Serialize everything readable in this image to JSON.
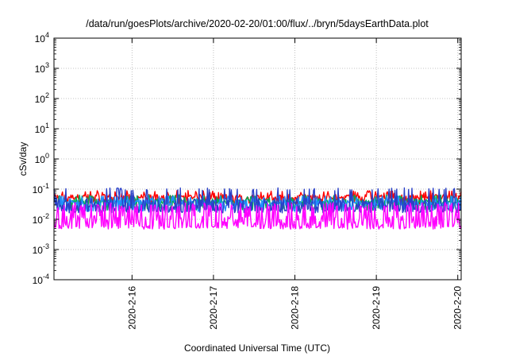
{
  "chart_data": {
    "type": "line",
    "title": "/data/run/goesPlots/archive/2020-02-20/01:00/flux/../bryn/5daysEarthData.plot",
    "xlabel": "Coordinated Universal Time (UTC)",
    "ylabel": "cSv/day",
    "yscale": "log",
    "ylim": [
      0.0001,
      10000
    ],
    "yticks": [
      {
        "value": 0.0001,
        "base": "10",
        "exp": "-4"
      },
      {
        "value": 0.001,
        "base": "10",
        "exp": "-3"
      },
      {
        "value": 0.01,
        "base": "10",
        "exp": "-2"
      },
      {
        "value": 0.1,
        "base": "10",
        "exp": "-1"
      },
      {
        "value": 1,
        "base": "10",
        "exp": "0"
      },
      {
        "value": 10,
        "base": "10",
        "exp": "1"
      },
      {
        "value": 100,
        "base": "10",
        "exp": "2"
      },
      {
        "value": 1000,
        "base": "10",
        "exp": "3"
      },
      {
        "value": 10000,
        "base": "10",
        "exp": "4"
      }
    ],
    "xlim": [
      "2020-02-15T01:00",
      "2020-02-20T01:00"
    ],
    "xticks": [
      {
        "value": "2020-02-16T00:00",
        "label": "2020-2-16"
      },
      {
        "value": "2020-02-17T00:00",
        "label": "2020-2-17"
      },
      {
        "value": "2020-02-18T00:00",
        "label": "2020-2-18"
      },
      {
        "value": "2020-02-19T00:00",
        "label": "2020-2-19"
      },
      {
        "value": "2020-02-20T00:00",
        "label": "2020-2-20"
      }
    ],
    "grid": true,
    "legend": "none",
    "series": [
      {
        "color": "#ff0000",
        "base": 0.055,
        "low": 0.035,
        "high": 0.09
      },
      {
        "color": "#00aa55",
        "base": 0.04,
        "low": 0.022,
        "high": 0.065
      },
      {
        "color": "#1e90ff",
        "base": 0.035,
        "low": 0.02,
        "high": 0.06
      },
      {
        "color": "#2a40c8",
        "base": 0.03,
        "low": 0.018,
        "high": 0.11
      },
      {
        "color": "#ff00ff",
        "base": 0.008,
        "low": 0.0055,
        "high": 0.03
      }
    ]
  }
}
